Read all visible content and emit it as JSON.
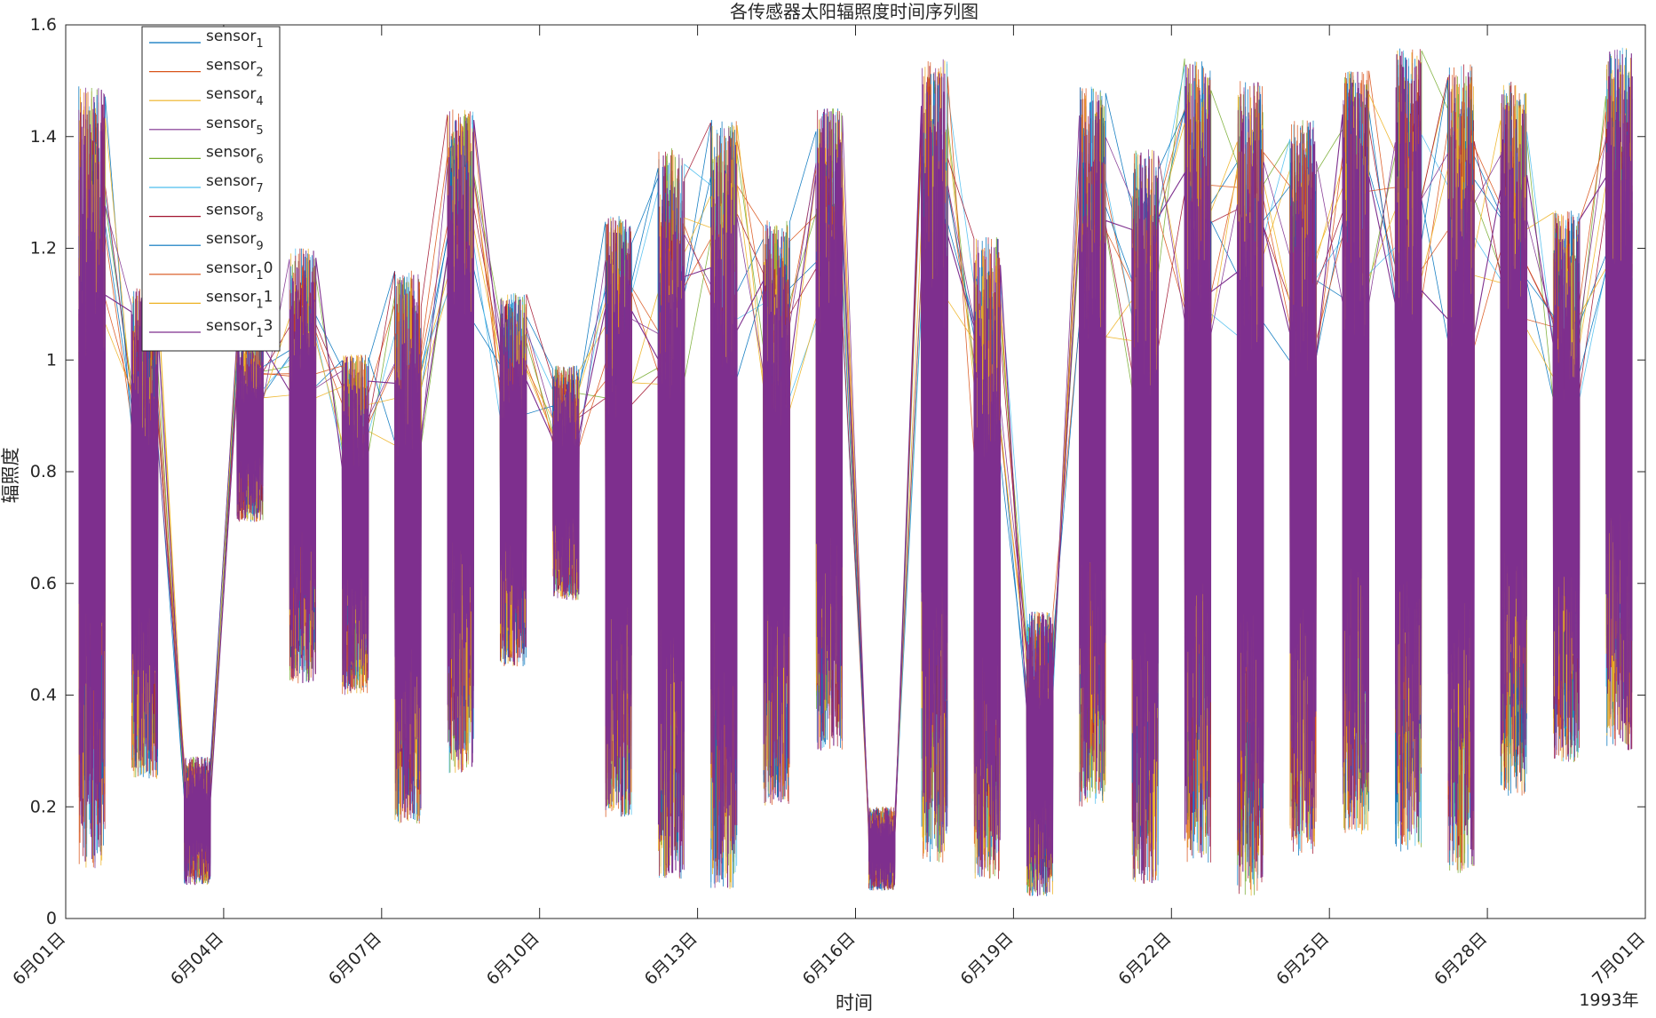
{
  "chart_data": {
    "type": "line",
    "title": "各传感器太阳辐照度时间序列图",
    "xlabel": "时间",
    "ylabel": "辐照度",
    "year_label": "1993年",
    "xlim": [
      "1993-06-01",
      "1993-07-01"
    ],
    "ylim": [
      0,
      1.6
    ],
    "yticks": [
      "0",
      "0.2",
      "0.4",
      "0.6",
      "0.8",
      "1",
      "1.2",
      "1.4",
      "1.6"
    ],
    "xticks": [
      "6月01日",
      "6月04日",
      "6月07日",
      "6月10日",
      "6月13日",
      "6月16日",
      "6月19日",
      "6月22日",
      "6月25日",
      "6月28日",
      "7月01日"
    ],
    "grid": false,
    "legend_position": "top-left",
    "series": [
      {
        "name": "sensor_1",
        "base": "sensor",
        "sub": "1",
        "tail": "",
        "color": "#0072BD"
      },
      {
        "name": "sensor_2",
        "base": "sensor",
        "sub": "2",
        "tail": "",
        "color": "#D95319"
      },
      {
        "name": "sensor_4",
        "base": "sensor",
        "sub": "4",
        "tail": "",
        "color": "#EDB120"
      },
      {
        "name": "sensor_5",
        "base": "sensor",
        "sub": "5",
        "tail": "",
        "color": "#7E2F8E"
      },
      {
        "name": "sensor_6",
        "base": "sensor",
        "sub": "6",
        "tail": "",
        "color": "#77AC30"
      },
      {
        "name": "sensor_7",
        "base": "sensor",
        "sub": "7",
        "tail": "",
        "color": "#4DBEEE"
      },
      {
        "name": "sensor_8",
        "base": "sensor",
        "sub": "8",
        "tail": "",
        "color": "#A2142F"
      },
      {
        "name": "sensor_9",
        "base": "sensor",
        "sub": "9",
        "tail": "",
        "color": "#0072BD"
      },
      {
        "name": "sensor_10",
        "base": "sensor",
        "sub": "1",
        "tail": "0",
        "color": "#D95319"
      },
      {
        "name": "sensor_11",
        "base": "sensor",
        "sub": "1",
        "tail": "1",
        "color": "#EDB120"
      },
      {
        "name": "sensor_13",
        "base": "sensor",
        "sub": "1",
        "tail": "3",
        "color": "#7E2F8E"
      }
    ],
    "daily_envelope": {
      "description_free": true,
      "days": [
        {
          "x": [
            "1993-06-01 06:00",
            "1993-06-01 12:00",
            "1993-06-01 18:00"
          ],
          "min": 0.09,
          "max": 1.49
        },
        {
          "x": [
            "1993-06-02 06:00",
            "1993-06-02 12:00",
            "1993-06-02 18:00"
          ],
          "min": 0.25,
          "max": 1.13
        },
        {
          "x": [
            "1993-06-03 06:00",
            "1993-06-03 12:00",
            "1993-06-03 18:00"
          ],
          "min": 0.06,
          "max": 0.29
        },
        {
          "x": [
            "1993-06-04 06:00",
            "1993-06-04 12:00",
            "1993-06-04 18:00"
          ],
          "min": 0.71,
          "max": 1.04
        },
        {
          "x": [
            "1993-06-05 06:00",
            "1993-06-05 12:00",
            "1993-06-05 18:00"
          ],
          "min": 0.42,
          "max": 1.2
        },
        {
          "x": [
            "1993-06-06 06:00",
            "1993-06-06 12:00",
            "1993-06-06 18:00"
          ],
          "min": 0.4,
          "max": 1.01
        },
        {
          "x": [
            "1993-06-07 06:00",
            "1993-06-07 12:00",
            "1993-06-07 18:00"
          ],
          "min": 0.17,
          "max": 1.16
        },
        {
          "x": [
            "1993-06-08 06:00",
            "1993-06-08 12:00",
            "1993-06-08 18:00"
          ],
          "min": 0.26,
          "max": 1.45
        },
        {
          "x": [
            "1993-06-09 06:00",
            "1993-06-09 12:00",
            "1993-06-09 18:00"
          ],
          "min": 0.45,
          "max": 1.12
        },
        {
          "x": [
            "1993-06-10 06:00",
            "1993-06-10 12:00",
            "1993-06-10 18:00"
          ],
          "min": 0.57,
          "max": 0.99
        },
        {
          "x": [
            "1993-06-11 06:00",
            "1993-06-11 12:00",
            "1993-06-11 18:00"
          ],
          "min": 0.18,
          "max": 1.26
        },
        {
          "x": [
            "1993-06-12 06:00",
            "1993-06-12 12:00",
            "1993-06-12 18:00"
          ],
          "min": 0.07,
          "max": 1.38
        },
        {
          "x": [
            "1993-06-13 06:00",
            "1993-06-13 12:00",
            "1993-06-13 18:00"
          ],
          "min": 0.05,
          "max": 1.43
        },
        {
          "x": [
            "1993-06-14 06:00",
            "1993-06-14 12:00",
            "1993-06-14 18:00"
          ],
          "min": 0.2,
          "max": 1.25
        },
        {
          "x": [
            "1993-06-15 06:00",
            "1993-06-15 12:00",
            "1993-06-15 18:00"
          ],
          "min": 0.3,
          "max": 1.45
        },
        {
          "x": [
            "1993-06-16 06:00",
            "1993-06-16 12:00",
            "1993-06-16 18:00"
          ],
          "min": 0.05,
          "max": 0.2
        },
        {
          "x": [
            "1993-06-17 06:00",
            "1993-06-17 12:00",
            "1993-06-17 18:00"
          ],
          "min": 0.1,
          "max": 1.54
        },
        {
          "x": [
            "1993-06-18 06:00",
            "1993-06-18 12:00",
            "1993-06-18 18:00"
          ],
          "min": 0.07,
          "max": 1.22
        },
        {
          "x": [
            "1993-06-19 06:00",
            "1993-06-19 12:00",
            "1993-06-19 18:00"
          ],
          "min": 0.04,
          "max": 0.55
        },
        {
          "x": [
            "1993-06-20 06:00",
            "1993-06-20 12:00",
            "1993-06-20 18:00"
          ],
          "min": 0.2,
          "max": 1.49
        },
        {
          "x": [
            "1993-06-21 06:00",
            "1993-06-21 12:00",
            "1993-06-21 18:00"
          ],
          "min": 0.06,
          "max": 1.38
        },
        {
          "x": [
            "1993-06-22 06:00",
            "1993-06-22 12:00",
            "1993-06-22 18:00"
          ],
          "min": 0.1,
          "max": 1.54
        },
        {
          "x": [
            "1993-06-23 06:00",
            "1993-06-23 12:00",
            "1993-06-23 18:00"
          ],
          "min": 0.04,
          "max": 1.5
        },
        {
          "x": [
            "1993-06-24 06:00",
            "1993-06-24 12:00",
            "1993-06-24 18:00"
          ],
          "min": 0.11,
          "max": 1.43
        },
        {
          "x": [
            "1993-06-25 06:00",
            "1993-06-25 12:00",
            "1993-06-25 18:00"
          ],
          "min": 0.15,
          "max": 1.52
        },
        {
          "x": [
            "1993-06-26 06:00",
            "1993-06-26 12:00",
            "1993-06-26 18:00"
          ],
          "min": 0.12,
          "max": 1.56
        },
        {
          "x": [
            "1993-06-27 06:00",
            "1993-06-27 12:00",
            "1993-06-27 18:00"
          ],
          "min": 0.08,
          "max": 1.53
        },
        {
          "x": [
            "1993-06-28 06:00",
            "1993-06-28 12:00",
            "1993-06-28 18:00"
          ],
          "min": 0.22,
          "max": 1.5
        },
        {
          "x": [
            "1993-06-29 06:00",
            "1993-06-29 12:00",
            "1993-06-29 18:00"
          ],
          "min": 0.28,
          "max": 1.27
        },
        {
          "x": [
            "1993-06-30 06:00",
            "1993-06-30 12:00",
            "1993-06-30 18:00"
          ],
          "min": 0.3,
          "max": 1.56
        }
      ]
    }
  }
}
